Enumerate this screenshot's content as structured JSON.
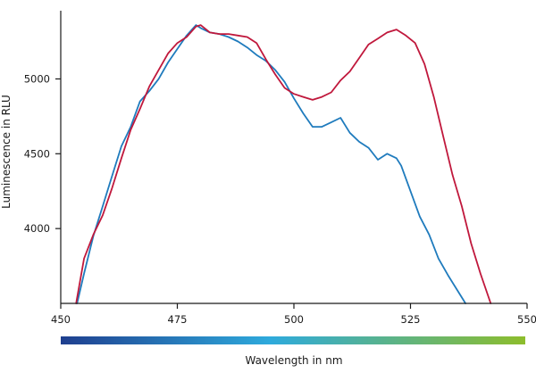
{
  "chart_data": {
    "type": "line",
    "xlabel": "Wavelength in nm",
    "ylabel": "Luminescence in RLU",
    "xlim": [
      450,
      550
    ],
    "ylim": [
      3500,
      5420
    ],
    "x_ticks": [
      450,
      475,
      500,
      525,
      550
    ],
    "y_ticks": [
      4000,
      4500,
      5000
    ],
    "grid": false,
    "legend": "none",
    "colorbar": {
      "from": "#1f3f8f",
      "mid": "#2eaadc",
      "to": "#8dbd2c"
    },
    "series": [
      {
        "color": "#1f7bbd",
        "points": [
          [
            453.5,
            3500
          ],
          [
            455,
            3700
          ],
          [
            457,
            3950
          ],
          [
            459,
            4150
          ],
          [
            461,
            4350
          ],
          [
            463,
            4550
          ],
          [
            465,
            4680
          ],
          [
            467,
            4850
          ],
          [
            469,
            4920
          ],
          [
            471,
            5000
          ],
          [
            473,
            5110
          ],
          [
            475,
            5200
          ],
          [
            477,
            5290
          ],
          [
            479,
            5360
          ],
          [
            480,
            5340
          ],
          [
            482,
            5310
          ],
          [
            484,
            5300
          ],
          [
            486,
            5280
          ],
          [
            488,
            5250
          ],
          [
            490,
            5210
          ],
          [
            492,
            5160
          ],
          [
            494,
            5120
          ],
          [
            496,
            5060
          ],
          [
            498,
            4980
          ],
          [
            500,
            4870
          ],
          [
            502,
            4770
          ],
          [
            504,
            4680
          ],
          [
            506,
            4680
          ],
          [
            508,
            4710
          ],
          [
            510,
            4740
          ],
          [
            512,
            4640
          ],
          [
            514,
            4580
          ],
          [
            516,
            4540
          ],
          [
            518,
            4460
          ],
          [
            520,
            4500
          ],
          [
            522,
            4470
          ],
          [
            523,
            4420
          ],
          [
            525,
            4250
          ],
          [
            527,
            4080
          ],
          [
            529,
            3960
          ],
          [
            531,
            3800
          ],
          [
            533,
            3690
          ],
          [
            535,
            3590
          ],
          [
            536.8,
            3500
          ]
        ]
      },
      {
        "color": "#c0183c",
        "points": [
          [
            453.3,
            3500
          ],
          [
            455,
            3800
          ],
          [
            457,
            3960
          ],
          [
            459,
            4090
          ],
          [
            461,
            4270
          ],
          [
            463,
            4470
          ],
          [
            465,
            4660
          ],
          [
            467,
            4800
          ],
          [
            469,
            4950
          ],
          [
            471,
            5060
          ],
          [
            473,
            5170
          ],
          [
            475,
            5240
          ],
          [
            477,
            5280
          ],
          [
            479,
            5350
          ],
          [
            480,
            5360
          ],
          [
            482,
            5310
          ],
          [
            484,
            5300
          ],
          [
            486,
            5300
          ],
          [
            488,
            5290
          ],
          [
            490,
            5280
          ],
          [
            492,
            5240
          ],
          [
            494,
            5130
          ],
          [
            496,
            5030
          ],
          [
            498,
            4940
          ],
          [
            500,
            4900
          ],
          [
            502,
            4880
          ],
          [
            504,
            4860
          ],
          [
            506,
            4880
          ],
          [
            508,
            4910
          ],
          [
            510,
            4990
          ],
          [
            512,
            5050
          ],
          [
            514,
            5140
          ],
          [
            516,
            5230
          ],
          [
            518,
            5270
          ],
          [
            520,
            5310
          ],
          [
            522,
            5330
          ],
          [
            524,
            5290
          ],
          [
            526,
            5240
          ],
          [
            528,
            5100
          ],
          [
            530,
            4880
          ],
          [
            532,
            4620
          ],
          [
            534,
            4360
          ],
          [
            536,
            4150
          ],
          [
            538,
            3900
          ],
          [
            540,
            3700
          ],
          [
            542.2,
            3500
          ]
        ]
      }
    ]
  }
}
